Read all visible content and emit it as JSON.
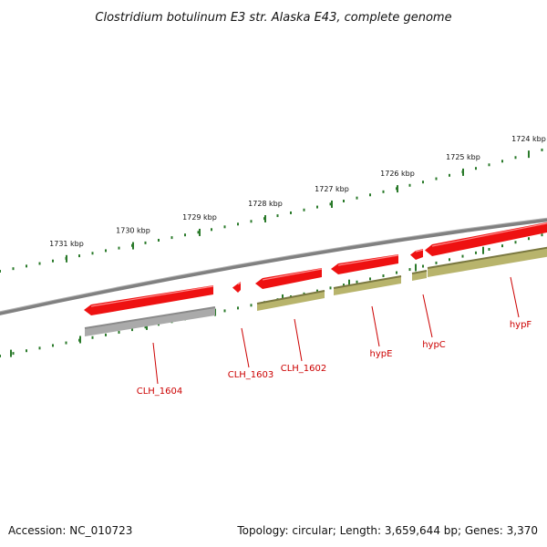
{
  "title": "Clostridium botulinum E3 str. Alaska E43, complete genome",
  "footer": {
    "accession": "Accession: NC_010723",
    "summary": "Topology: circular; Length: 3,659,644 bp; Genes: 3,370"
  },
  "scale_marks": [
    {
      "label": "1731 kbp",
      "kbp": 1731
    },
    {
      "label": "1730 kbp",
      "kbp": 1730
    },
    {
      "label": "1729 kbp",
      "kbp": 1729
    },
    {
      "label": "1728 kbp",
      "kbp": 1728
    },
    {
      "label": "1727 kbp",
      "kbp": 1727
    },
    {
      "label": "1726 kbp",
      "kbp": 1726
    },
    {
      "label": "1725 kbp",
      "kbp": 1725
    },
    {
      "label": "1724 kbp",
      "kbp": 1724
    }
  ],
  "genes": [
    {
      "label": "CLH_1604",
      "strand": "reverse",
      "product_track": "grey"
    },
    {
      "label": "CLH_1603",
      "strand": "reverse",
      "product_track": "none"
    },
    {
      "label": "CLH_1602",
      "strand": "reverse",
      "product_track": "olive"
    },
    {
      "label": "hypE",
      "strand": "reverse",
      "product_track": "olive"
    },
    {
      "label": "hypC",
      "strand": "reverse",
      "product_track": "olive"
    },
    {
      "label": "hypF",
      "strand": "reverse",
      "product_track": "olive"
    }
  ],
  "colors": {
    "gene": "#ee1111",
    "gene_highlight": "#ff8888",
    "backbone": "#808080",
    "ticks": "#2a7a2a",
    "olive_track": "#b8b46c",
    "olive_dark": "#7a7840",
    "grey_track": "#aaaaaa",
    "label": "#cc0000"
  }
}
